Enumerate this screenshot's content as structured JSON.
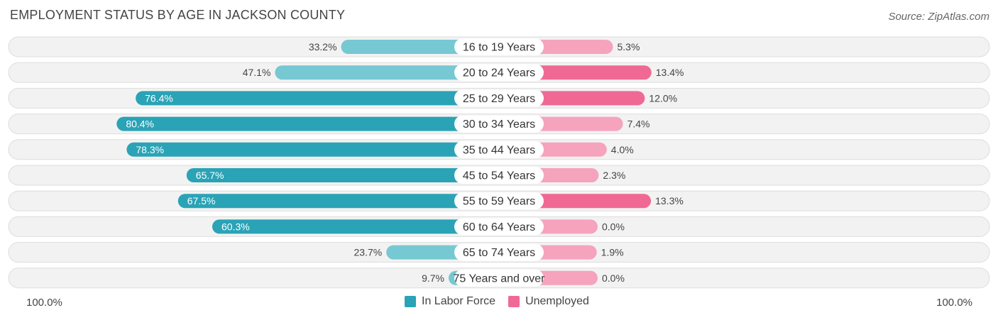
{
  "header": {
    "title": "EMPLOYMENT STATUS BY AGE IN JACKSON COUNTY",
    "source": "Source: ZipAtlas.com"
  },
  "colors": {
    "labor_dark": "#2aa3b6",
    "labor_light": "#76c8d2",
    "unemployed_dark": "#f06995",
    "unemployed_light": "#f6a3bd"
  },
  "chart_data": {
    "type": "bar",
    "orientation": "diverging-horizontal",
    "title": "EMPLOYMENT STATUS BY AGE IN JACKSON COUNTY",
    "categories": [
      "16 to 19 Years",
      "20 to 24 Years",
      "25 to 29 Years",
      "30 to 34 Years",
      "35 to 44 Years",
      "45 to 54 Years",
      "55 to 59 Years",
      "60 to 64 Years",
      "65 to 74 Years",
      "75 Years and over"
    ],
    "series": [
      {
        "name": "In Labor Force",
        "values": [
          33.2,
          47.1,
          76.4,
          80.4,
          78.3,
          65.7,
          67.5,
          60.3,
          23.7,
          9.7
        ],
        "labels": [
          "33.2%",
          "47.1%",
          "76.4%",
          "80.4%",
          "78.3%",
          "65.7%",
          "67.5%",
          "60.3%",
          "23.7%",
          "9.7%"
        ]
      },
      {
        "name": "Unemployed",
        "values": [
          5.3,
          13.4,
          12.0,
          7.4,
          4.0,
          2.3,
          13.3,
          0.0,
          1.9,
          0.0
        ],
        "labels": [
          "5.3%",
          "13.4%",
          "12.0%",
          "7.4%",
          "4.0%",
          "2.3%",
          "13.3%",
          "0.0%",
          "1.9%",
          "0.0%"
        ]
      }
    ],
    "xlim": [
      -100,
      100
    ],
    "axis_left_label": "100.0%",
    "axis_right_label": "100.0%",
    "legend_position": "bottom-center"
  }
}
